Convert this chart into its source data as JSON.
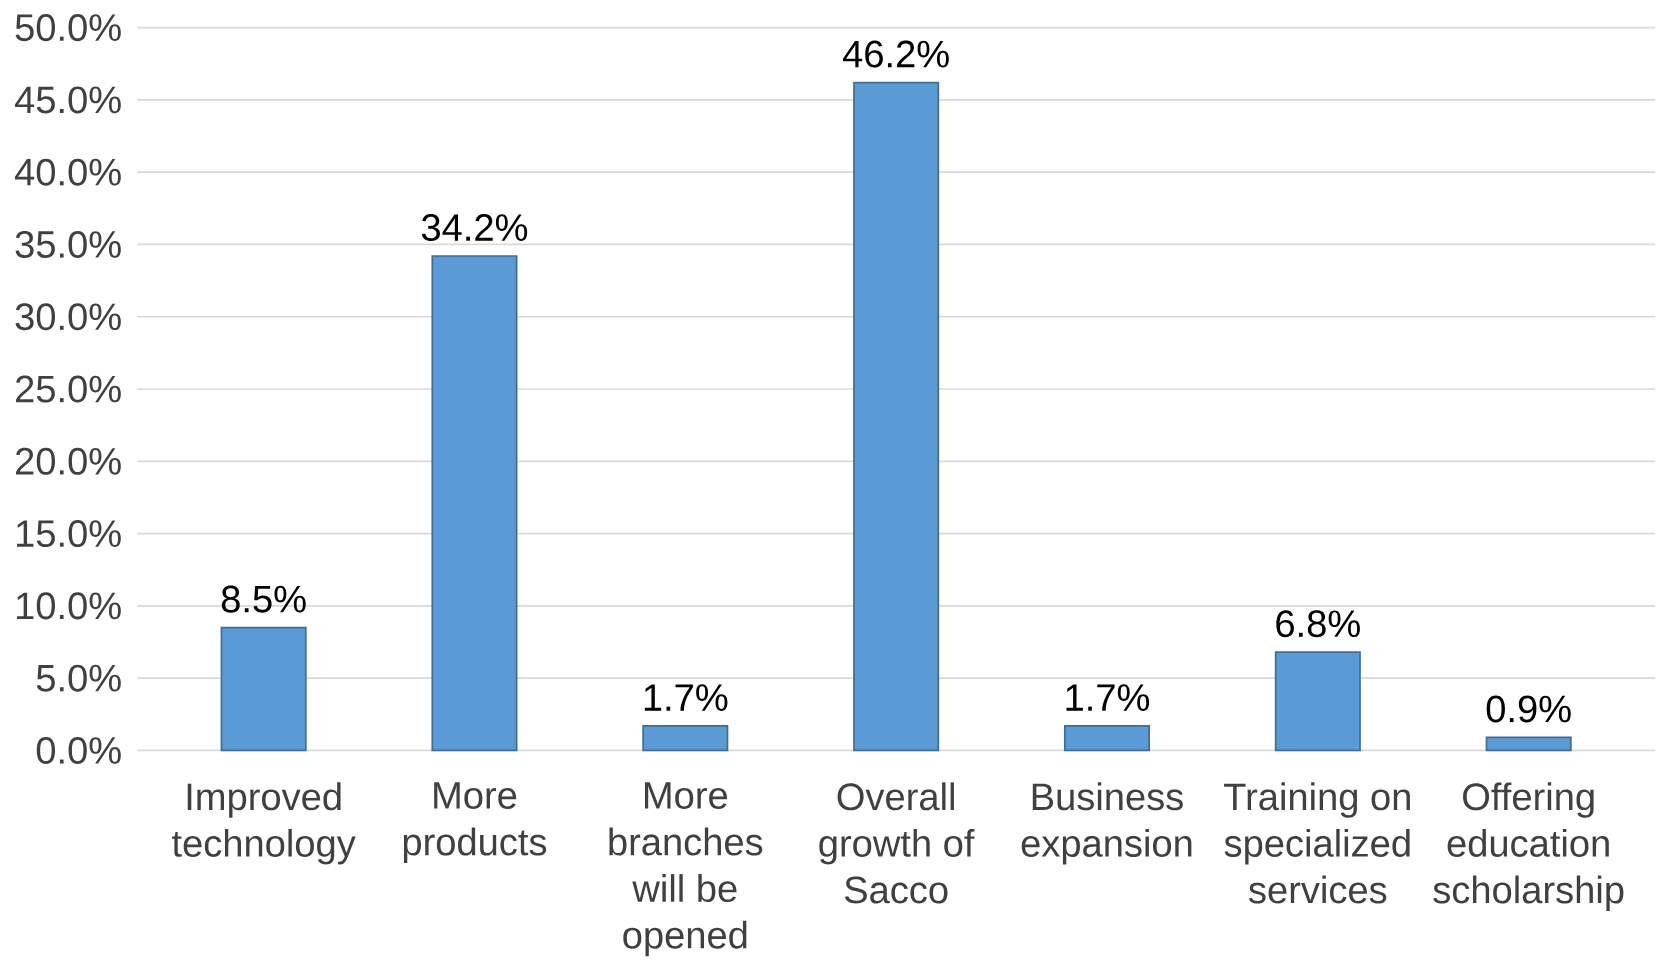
{
  "chart_data": {
    "type": "bar",
    "categories": [
      "Improved technology",
      "More products",
      "More branches will be opened",
      "Overall growth of Sacco",
      "Business expansion",
      "Training on specialized services",
      "Offering education scholarship"
    ],
    "values": [
      8.5,
      34.2,
      1.7,
      46.2,
      1.7,
      6.8,
      0.9
    ],
    "value_labels": [
      "8.5%",
      "34.2%",
      "1.7%",
      "46.2%",
      "1.7%",
      "6.8%",
      "0.9%"
    ],
    "color": "#5b9bd5",
    "ylim": [
      0,
      50
    ],
    "yticks": [
      {
        "value": 0,
        "label": "0.0%"
      },
      {
        "value": 5,
        "label": "5.0%"
      },
      {
        "value": 10,
        "label": "10.0%"
      },
      {
        "value": 15,
        "label": "15.0%"
      },
      {
        "value": 20,
        "label": "20.0%"
      },
      {
        "value": 25,
        "label": "25.0%"
      },
      {
        "value": 30,
        "label": "30.0%"
      },
      {
        "value": 35,
        "label": "35.0%"
      },
      {
        "value": 40,
        "label": "40.0%"
      },
      {
        "value": 45,
        "label": "45.0%"
      },
      {
        "value": 50,
        "label": "50.0%"
      }
    ],
    "grid": "y"
  }
}
